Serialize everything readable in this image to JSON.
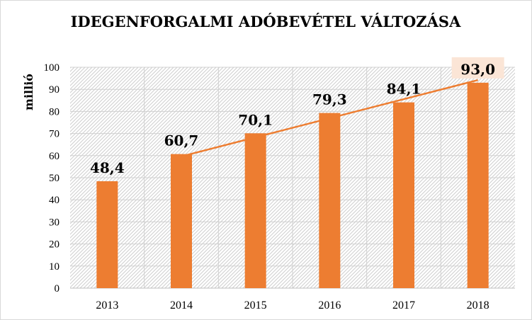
{
  "chart_data": {
    "type": "bar",
    "title": "IDEGENFORGALMI ADÓBEVÉTEL VÁLTOZÁSA",
    "xlabel": "",
    "ylabel": "millió",
    "categories": [
      "2013",
      "2014",
      "2015",
      "2016",
      "2017",
      "2018"
    ],
    "values": [
      48.4,
      60.7,
      70.1,
      79.3,
      84.1,
      93.0
    ],
    "data_labels": [
      "48,4",
      "60,7",
      "70,1",
      "79,3",
      "84,1",
      "93,0"
    ],
    "ylim": [
      0,
      100
    ],
    "yticks": [
      "0",
      "10",
      "20",
      "30",
      "40",
      "50",
      "60",
      "70",
      "80",
      "90",
      "100"
    ],
    "grid": true,
    "bar_color": "#ED7D31",
    "highlight_label_bg": "#FBE5D6",
    "highlight_index": 5,
    "trendline": {
      "type": "linear",
      "color": "#ED7D31",
      "start_category": "2014",
      "end_category": "2018"
    }
  }
}
